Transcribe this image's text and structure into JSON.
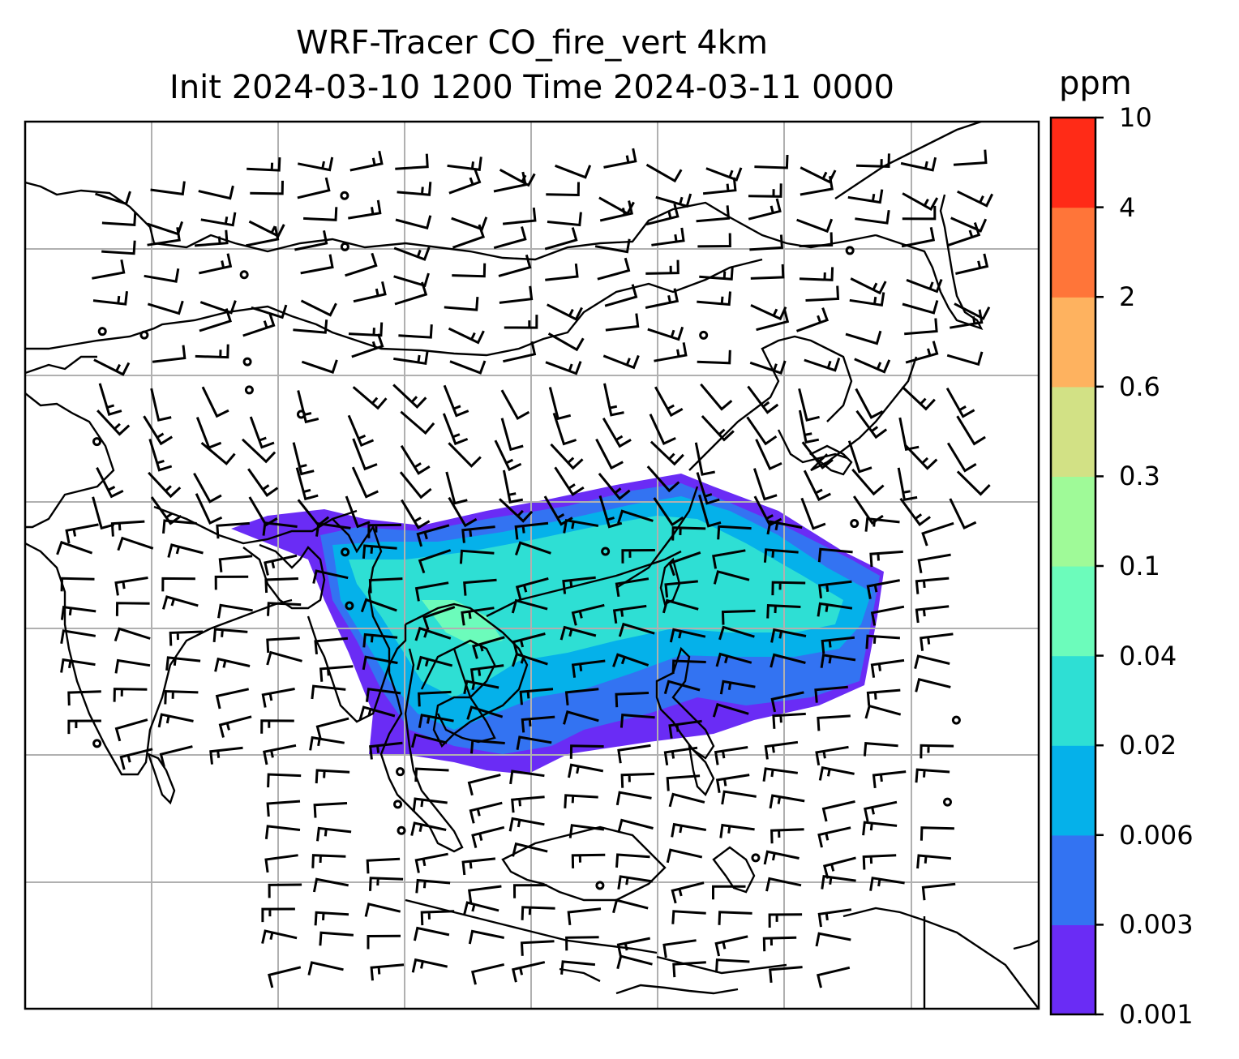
{
  "title": {
    "line1": "WRF-Tracer CO_fire_vert 4km",
    "line2": "Init 2024-03-10 1200 Time 2024-03-11 0000"
  },
  "colorbar": {
    "unit": "ppm",
    "ticks": [
      "0.001",
      "0.003",
      "0.006",
      "0.02",
      "0.04",
      "0.1",
      "0.3",
      "0.6",
      "2",
      "4",
      "10"
    ],
    "colors": [
      "#6a2cf5",
      "#3373f2",
      "#05b1ea",
      "#2edfd4",
      "#6cfcbb",
      "#9ffa98",
      "#d2e185",
      "#feb25f",
      "#ff7539",
      "#ff2b17"
    ]
  },
  "map": {
    "field": "CO_fire_vert",
    "background": "#ffffff",
    "gridline_color": "#b0b0b0",
    "coastline_color": "#000000",
    "barb_color": "#000000"
  }
}
